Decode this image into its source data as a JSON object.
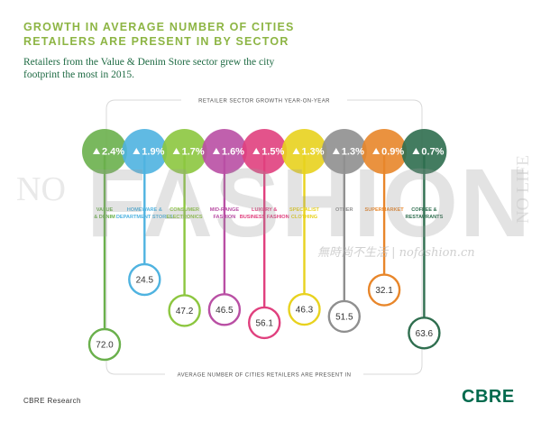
{
  "header": {
    "title_line1": "GROWTH IN AVERAGE NUMBER OF CITIES",
    "title_line2": "RETAILERS ARE PRESENT IN BY SECTOR",
    "subtitle_line1": "Retailers from the Value & Denim Store sector grew the city",
    "subtitle_line2": "footprint the most in 2015."
  },
  "footer": {
    "source": "CBRE Research",
    "logo": "CBRE"
  },
  "watermark": {
    "left": "NO",
    "main": "FASHION",
    "right": "NO LIFE",
    "cn": "無時尚不生活 | nofashion.cn"
  },
  "chart_data": {
    "type": "bubble-lollipop",
    "top_label": "RETAILER SECTOR GROWTH YEAR-ON-YEAR",
    "bottom_label": "AVERAGE NUMBER OF CITIES RETAILERS ARE PRESENT IN",
    "sectors": [
      {
        "label_lines": [
          "VALUE",
          "& DENIM"
        ],
        "growth": "2.4%",
        "cities": 72.0,
        "cities_label": "72.0",
        "color": "#6ab04c"
      },
      {
        "label_lines": [
          "HOMEWARE &",
          "DEPARTMENT STORES"
        ],
        "growth": "1.9%",
        "cities": 24.5,
        "cities_label": "24.5",
        "color": "#4fb3e0"
      },
      {
        "label_lines": [
          "CONSUMER",
          "ELECTRONICS"
        ],
        "growth": "1.7%",
        "cities": 47.2,
        "cities_label": "47.2",
        "color": "#8cc63f"
      },
      {
        "label_lines": [
          "MID-RANGE",
          "FASHION"
        ],
        "growth": "1.6%",
        "cities": 46.5,
        "cities_label": "46.5",
        "color": "#b94fa4"
      },
      {
        "label_lines": [
          "LUXURY &",
          "BUSINESS FASHION"
        ],
        "growth": "1.5%",
        "cities": 56.1,
        "cities_label": "56.1",
        "color": "#e0407e"
      },
      {
        "label_lines": [
          "SPECIALIST",
          "CLOTHING"
        ],
        "growth": "1.3%",
        "cities": 46.3,
        "cities_label": "46.3",
        "color": "#e8d21e"
      },
      {
        "label_lines": [
          "OTHER"
        ],
        "growth": "1.3%",
        "cities": 51.5,
        "cities_label": "51.5",
        "color": "#8f8f8f"
      },
      {
        "label_lines": [
          "SUPERMARKET"
        ],
        "growth": "0.9%",
        "cities": 32.1,
        "cities_label": "32.1",
        "color": "#e8862a"
      },
      {
        "label_lines": [
          "COFFEE &",
          "RESTAURANTS"
        ],
        "growth": "0.7%",
        "cities": 63.6,
        "cities_label": "63.6",
        "color": "#2f6e4f"
      }
    ]
  }
}
